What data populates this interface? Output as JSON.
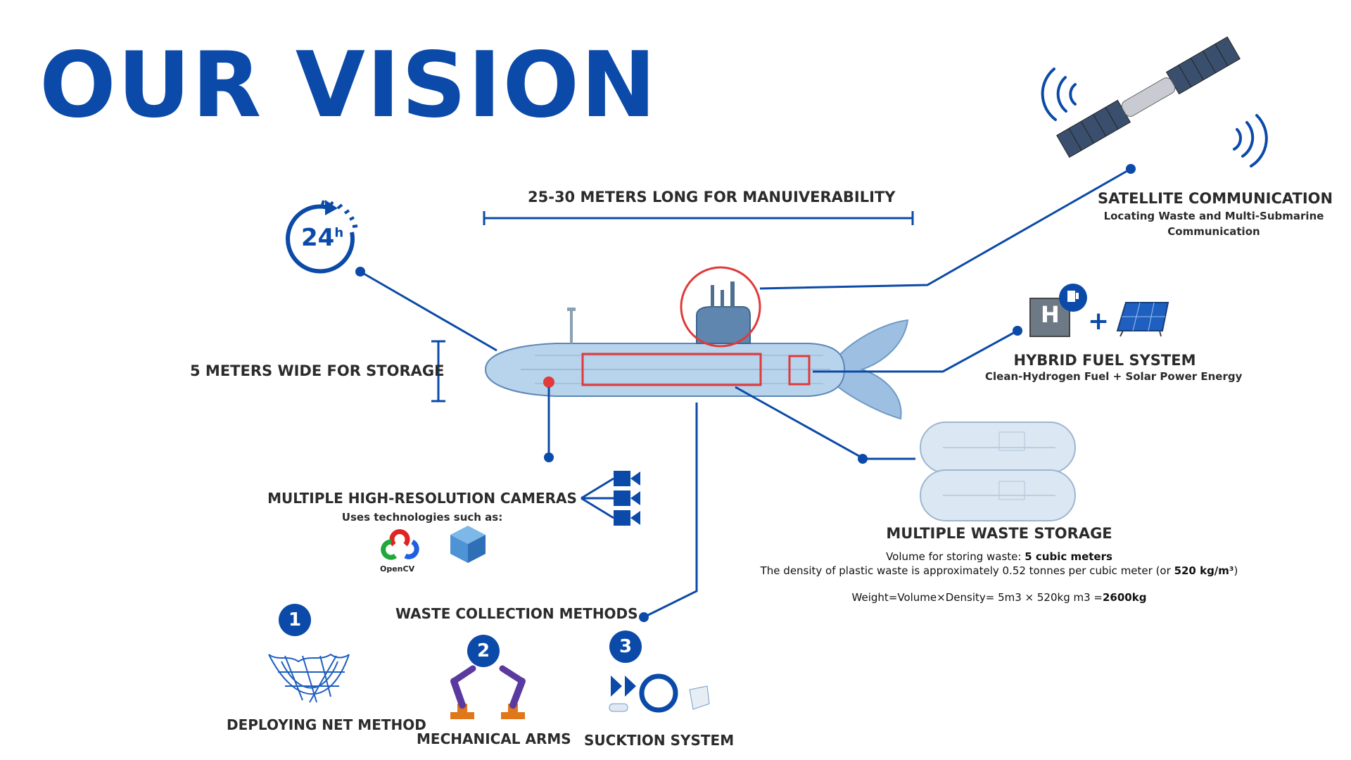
{
  "title": "OUR VISION",
  "length_label": "25-30 METERS LONG FOR MANUIVERABILITY",
  "width_label": "5 METERS WIDE FOR STORAGE",
  "clock_label": "24",
  "clock_sup": "h",
  "satellite": {
    "title": "SATELLITE COMMUNICATION",
    "subtitle_line1": "Locating Waste and Multi-Submarine",
    "subtitle_line2": "Communication"
  },
  "fuel": {
    "title": "HYBRID FUEL SYSTEM",
    "subtitle": "Clean-Hydrogen Fuel + Solar Power Energy",
    "element_symbol": "H",
    "plus": "+"
  },
  "cameras": {
    "title": "MULTIPLE HIGH-RESOLUTION CAMERAS",
    "subtitle": "Uses technologies such as:",
    "opencv_label": "OpenCV"
  },
  "storage": {
    "title": "MULTIPLE WASTE STORAGE",
    "volume_prefix": "Volume for storing waste: ",
    "volume_value": "5 cubic meters",
    "density_prefix": "The density of plastic waste is approximately 0.52 tonnes per cubic meter (or ",
    "density_value": "520 kg/m³",
    "density_suffix": ")",
    "weight_prefix": "Weight=Volume×Density= 5m3 × 520kg m3 =",
    "weight_value": "2600kg"
  },
  "collection": {
    "title": "WASTE COLLECTION METHODS",
    "methods": [
      {
        "number": "1",
        "label": "DEPLOYING NET METHOD"
      },
      {
        "number": "2",
        "label": "MECHANICAL ARMS"
      },
      {
        "number": "3",
        "label": "SUCKTION SYSTEM"
      }
    ]
  },
  "colors": {
    "brand_blue": "#0b4aa8",
    "highlight_red": "#e03a3a",
    "hull_blue": "#a9c9e6"
  }
}
